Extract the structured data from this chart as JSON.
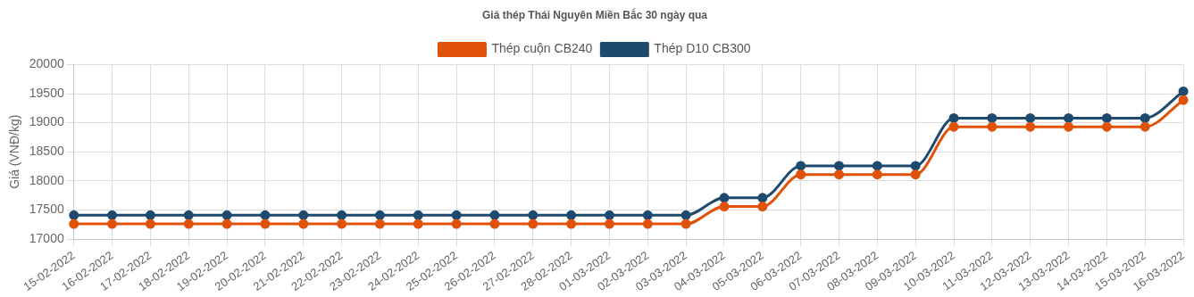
{
  "chart_data": {
    "type": "line",
    "title": "Giá thép Thái Nguyên Miền Bắc 30 ngày qua",
    "ylabel": "Giá (VNĐ/kg)",
    "categories": [
      "15-02-2022",
      "16-02-2022",
      "17-02-2022",
      "18-02-2022",
      "19-02-2022",
      "20-02-2022",
      "21-02-2022",
      "22-02-2022",
      "23-02-2022",
      "24-02-2022",
      "25-02-2022",
      "26-02-2022",
      "27-02-2022",
      "28-02-2022",
      "01-03-2022",
      "02-03-2022",
      "03-03-2022",
      "04-03-2022",
      "05-03-2022",
      "06-03-2022",
      "07-03-2022",
      "08-03-2022",
      "09-03-2022",
      "10-03-2022",
      "11-03-2022",
      "12-03-2022",
      "13-03-2022",
      "14-03-2022",
      "15-03-2022",
      "16-03-2022"
    ],
    "series": [
      {
        "name": "Thép cuộn CB240",
        "color": "#e0520a",
        "values": [
          17260,
          17260,
          17260,
          17260,
          17260,
          17260,
          17260,
          17260,
          17260,
          17260,
          17260,
          17260,
          17260,
          17260,
          17260,
          17260,
          17260,
          17560,
          17560,
          18110,
          18110,
          18110,
          18110,
          18930,
          18930,
          18930,
          18930,
          18930,
          18930,
          19390
        ]
      },
      {
        "name": "Thép D10 CB300",
        "color": "#1d4a6e",
        "values": [
          17410,
          17410,
          17410,
          17410,
          17410,
          17410,
          17410,
          17410,
          17410,
          17410,
          17410,
          17410,
          17410,
          17410,
          17410,
          17410,
          17410,
          17710,
          17710,
          18260,
          18260,
          18260,
          18260,
          19080,
          19080,
          19080,
          19080,
          19080,
          19080,
          19540
        ]
      }
    ],
    "ylim": [
      17000,
      20000
    ],
    "yticks": [
      17000,
      17500,
      18000,
      18500,
      19000,
      19500,
      20000
    ],
    "grid": true,
    "legend": "top",
    "marker": "circle",
    "line_style": "solid"
  }
}
